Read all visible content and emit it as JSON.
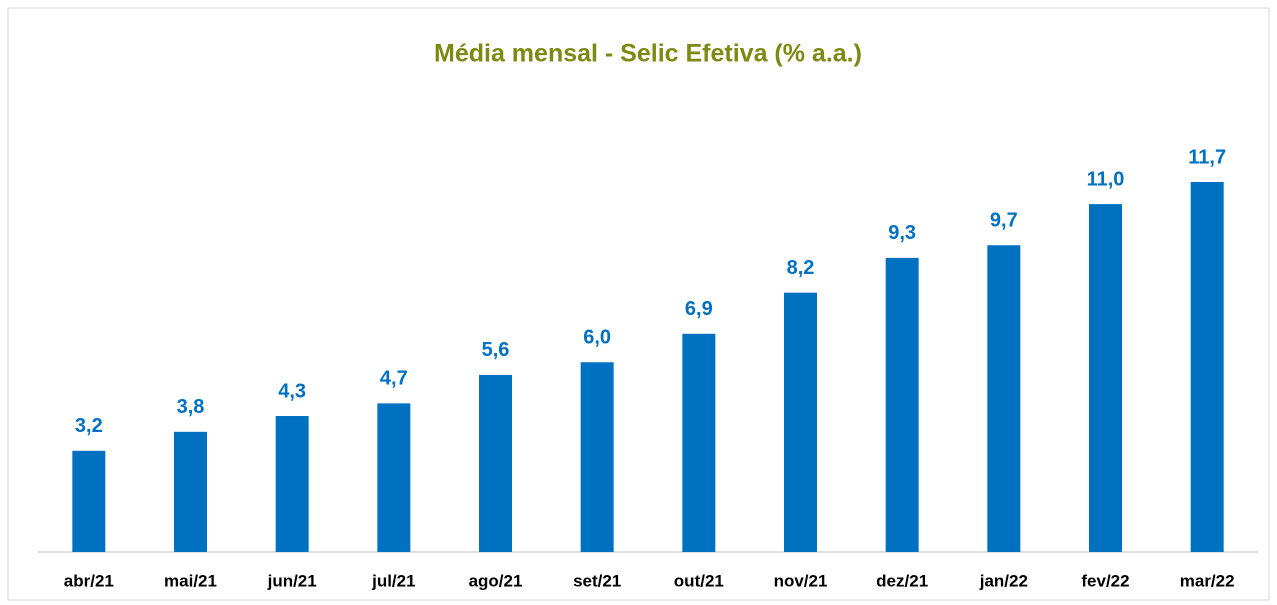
{
  "chart_data": {
    "type": "bar",
    "title": "Média mensal - Selic Efetiva (% a.a.)",
    "categories": [
      "abr/21",
      "mai/21",
      "jun/21",
      "jul/21",
      "ago/21",
      "set/21",
      "out/21",
      "nov/21",
      "dez/21",
      "jan/22",
      "fev/22",
      "mar/22"
    ],
    "values": [
      3.2,
      3.8,
      4.3,
      4.7,
      5.6,
      6.0,
      6.9,
      8.2,
      9.3,
      9.7,
      11.0,
      11.7
    ],
    "value_labels": [
      "3,2",
      "3,8",
      "4,3",
      "4,7",
      "5,6",
      "6,0",
      "6,9",
      "8,2",
      "9,3",
      "9,7",
      "11,0",
      "11,7"
    ],
    "color": "#0070c0"
  }
}
